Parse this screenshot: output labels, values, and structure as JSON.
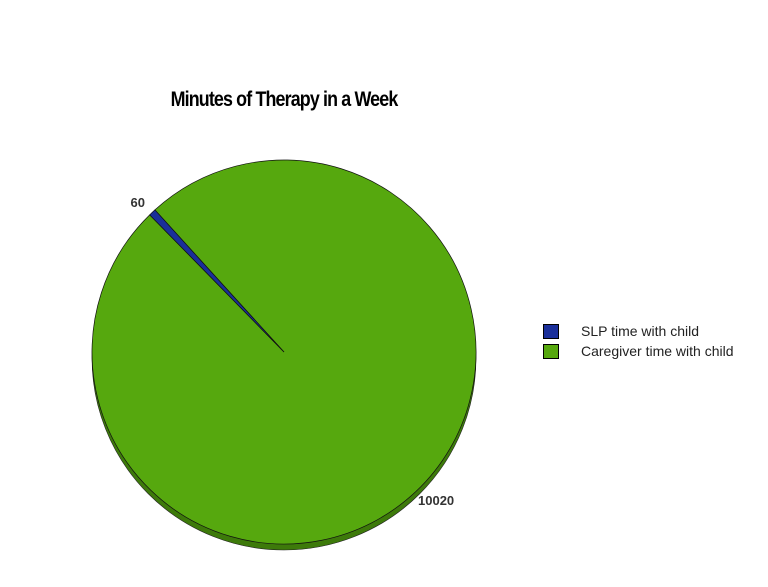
{
  "chart_data": {
    "type": "pie",
    "title": "Minutes of Therapy in a Week",
    "categories": [
      "SLP time with child",
      "Caregiver time with child"
    ],
    "values": [
      60,
      10020
    ],
    "colors": [
      "#1a2f9a",
      "#56a80e"
    ],
    "data_labels": [
      "60",
      "10020"
    ],
    "legend_position": "right",
    "style": "3d-shadow"
  }
}
